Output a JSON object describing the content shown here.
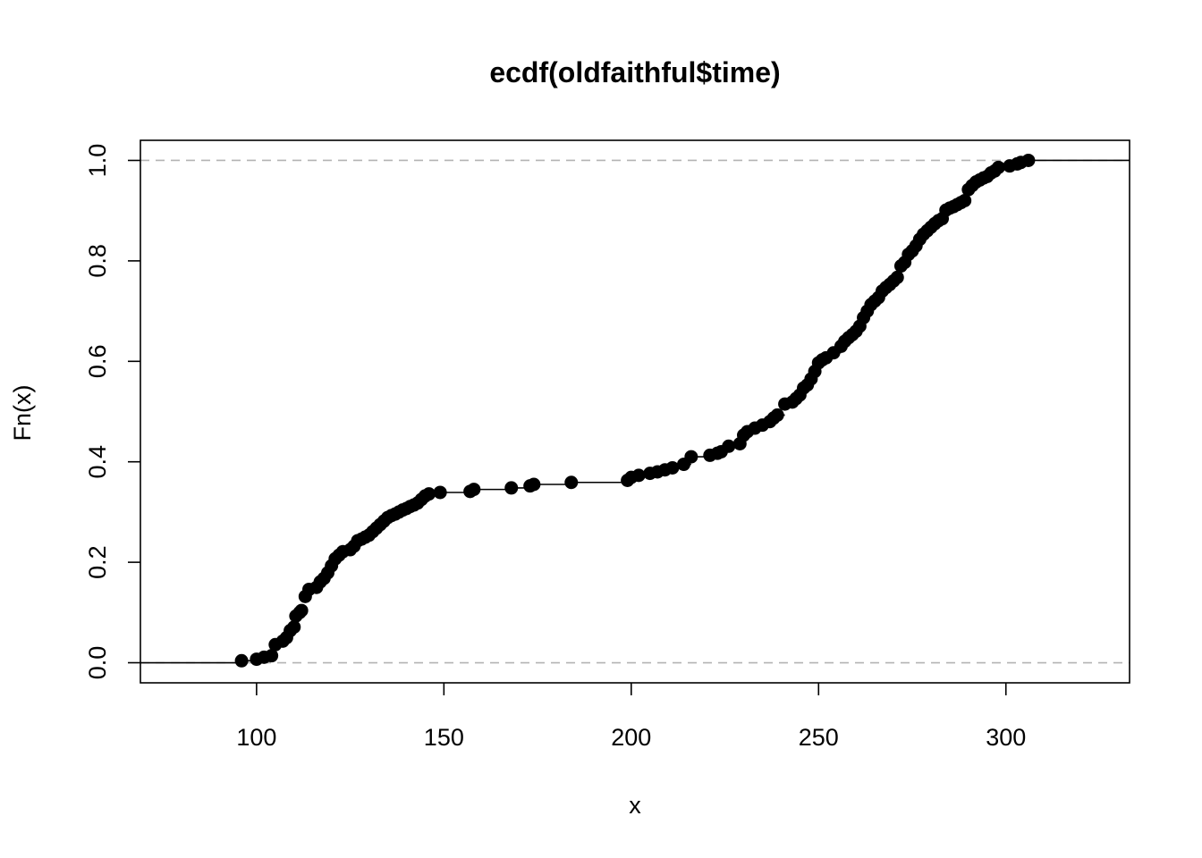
{
  "chart_data": {
    "type": "ecdf",
    "title": "ecdf(oldfaithful$time)",
    "xlabel": "x",
    "ylabel": "Fn(x)",
    "xlim": [
      69,
      333
    ],
    "ylim": [
      -0.04,
      1.04
    ],
    "xticks": [
      100,
      150,
      200,
      250,
      300
    ],
    "yticks": [
      0.0,
      0.2,
      0.4,
      0.6,
      0.8,
      1.0
    ],
    "xtick_labels": [
      "100",
      "150",
      "200",
      "250",
      "300"
    ],
    "ytick_labels": [
      "0.0",
      "0.2",
      "0.4",
      "0.6",
      "0.8",
      "1.0"
    ],
    "reference_lines": [
      0,
      1
    ],
    "points": [
      [
        96,
        0.004
      ],
      [
        100,
        0.007
      ],
      [
        102,
        0.011
      ],
      [
        104,
        0.014
      ],
      [
        105,
        0.036
      ],
      [
        107,
        0.043
      ],
      [
        108,
        0.05
      ],
      [
        109,
        0.064
      ],
      [
        110,
        0.071
      ],
      [
        110.5,
        0.093
      ],
      [
        111.5,
        0.1
      ],
      [
        112,
        0.104
      ],
      [
        113,
        0.132
      ],
      [
        114,
        0.146
      ],
      [
        116,
        0.15
      ],
      [
        117,
        0.161
      ],
      [
        118,
        0.168
      ],
      [
        119,
        0.179
      ],
      [
        120,
        0.193
      ],
      [
        121,
        0.207
      ],
      [
        122,
        0.214
      ],
      [
        123,
        0.221
      ],
      [
        125,
        0.225
      ],
      [
        126,
        0.232
      ],
      [
        127,
        0.243
      ],
      [
        128,
        0.246
      ],
      [
        129,
        0.25
      ],
      [
        130,
        0.254
      ],
      [
        131,
        0.261
      ],
      [
        132,
        0.268
      ],
      [
        133,
        0.275
      ],
      [
        134,
        0.282
      ],
      [
        135,
        0.289
      ],
      [
        136,
        0.293
      ],
      [
        137,
        0.296
      ],
      [
        138,
        0.3
      ],
      [
        139,
        0.304
      ],
      [
        140,
        0.307
      ],
      [
        141,
        0.311
      ],
      [
        142,
        0.314
      ],
      [
        143,
        0.318
      ],
      [
        144,
        0.325
      ],
      [
        145,
        0.332
      ],
      [
        146,
        0.336
      ],
      [
        149,
        0.339
      ],
      [
        157,
        0.341
      ],
      [
        158,
        0.345
      ],
      [
        168,
        0.348
      ],
      [
        173,
        0.352
      ],
      [
        174,
        0.355
      ],
      [
        184,
        0.359
      ],
      [
        199,
        0.363
      ],
      [
        200,
        0.369
      ],
      [
        202,
        0.373
      ],
      [
        205,
        0.377
      ],
      [
        207,
        0.38
      ],
      [
        209,
        0.384
      ],
      [
        211,
        0.388
      ],
      [
        214,
        0.395
      ],
      [
        216,
        0.41
      ],
      [
        221,
        0.413
      ],
      [
        223,
        0.417
      ],
      [
        224,
        0.42
      ],
      [
        226,
        0.431
      ],
      [
        229,
        0.436
      ],
      [
        230,
        0.453
      ],
      [
        231,
        0.46
      ],
      [
        233,
        0.467
      ],
      [
        235,
        0.473
      ],
      [
        237,
        0.48
      ],
      [
        238,
        0.487
      ],
      [
        239,
        0.493
      ],
      [
        241,
        0.515
      ],
      [
        243,
        0.519
      ],
      [
        244,
        0.526
      ],
      [
        245,
        0.533
      ],
      [
        246,
        0.547
      ],
      [
        247,
        0.553
      ],
      [
        248,
        0.565
      ],
      [
        249,
        0.58
      ],
      [
        250,
        0.597
      ],
      [
        251,
        0.603
      ],
      [
        252,
        0.607
      ],
      [
        254,
        0.617
      ],
      [
        256,
        0.63
      ],
      [
        257,
        0.64
      ],
      [
        258,
        0.647
      ],
      [
        259,
        0.653
      ],
      [
        260,
        0.66
      ],
      [
        261,
        0.67
      ],
      [
        262,
        0.687
      ],
      [
        263,
        0.7
      ],
      [
        264,
        0.713
      ],
      [
        265,
        0.72
      ],
      [
        266,
        0.727
      ],
      [
        267,
        0.74
      ],
      [
        268,
        0.747
      ],
      [
        269,
        0.753
      ],
      [
        270,
        0.76
      ],
      [
        271,
        0.767
      ],
      [
        272,
        0.79
      ],
      [
        273,
        0.797
      ],
      [
        274,
        0.813
      ],
      [
        275,
        0.82
      ],
      [
        276,
        0.83
      ],
      [
        277,
        0.843
      ],
      [
        278,
        0.853
      ],
      [
        279,
        0.86
      ],
      [
        280,
        0.867
      ],
      [
        281,
        0.874
      ],
      [
        282,
        0.88
      ],
      [
        283,
        0.884
      ],
      [
        284,
        0.901
      ],
      [
        285,
        0.905
      ],
      [
        286,
        0.908
      ],
      [
        287,
        0.912
      ],
      [
        288,
        0.916
      ],
      [
        289,
        0.92
      ],
      [
        290,
        0.942
      ],
      [
        291,
        0.95
      ],
      [
        292,
        0.957
      ],
      [
        293,
        0.961
      ],
      [
        294,
        0.965
      ],
      [
        295,
        0.968
      ],
      [
        296,
        0.975
      ],
      [
        297,
        0.979
      ],
      [
        298,
        0.986
      ],
      [
        301,
        0.989
      ],
      [
        303,
        0.993
      ],
      [
        304,
        0.996
      ],
      [
        306,
        1.0
      ]
    ]
  }
}
